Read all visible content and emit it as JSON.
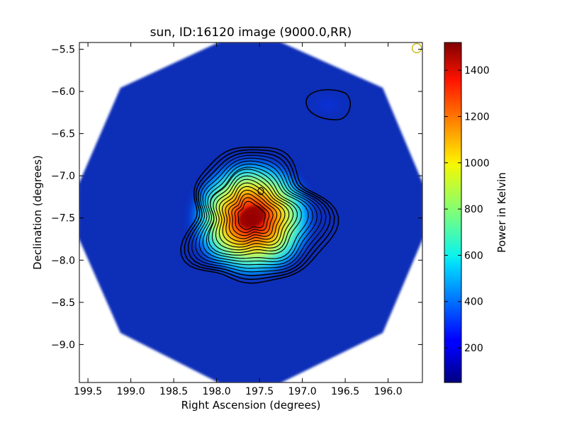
{
  "chart_data": {
    "type": "heatmap",
    "title": "sun, ID:16120 image (9000.0,RR)",
    "xlabel": "Right Ascension (degrees)",
    "ylabel": "Declination (degrees)",
    "xlim": [
      199.6,
      195.6
    ],
    "ylim": [
      -9.45,
      -5.42
    ],
    "x_ticks": [
      199.5,
      199.0,
      198.5,
      198.0,
      197.5,
      197.0,
      196.5,
      196.0
    ],
    "x_tick_labels": [
      "199.5",
      "199.0",
      "198.5",
      "198.0",
      "197.5",
      "197.0",
      "196.5",
      "196.0"
    ],
    "y_ticks": [
      -5.5,
      -6.0,
      -6.5,
      -7.0,
      -7.5,
      -8.0,
      -8.5,
      -9.0
    ],
    "y_tick_labels": [
      "−5.5",
      "−6.0",
      "−6.5",
      "−7.0",
      "−7.5",
      "−8.0",
      "−8.5",
      "−9.0"
    ],
    "colorbar": {
      "label": "Power in Kelvin",
      "range": [
        50,
        1520
      ],
      "ticks": [
        200,
        400,
        600,
        800,
        1000,
        1200,
        1400
      ],
      "tick_labels": [
        "200",
        "400",
        "600",
        "800",
        "1000",
        "1200",
        "1400"
      ],
      "colormap": "jet"
    },
    "source": {
      "center_ra": 197.6,
      "center_dec": -7.55,
      "peak_kelvin": 1500
    },
    "secondary_source": {
      "center_ra": 196.62,
      "center_dec": -6.18
    },
    "background_kelvin": 90,
    "beam_marker": {
      "ra": 195.69,
      "dec": -5.52,
      "color": "#c8b400"
    },
    "field_shape": "octagon",
    "grid": false
  }
}
